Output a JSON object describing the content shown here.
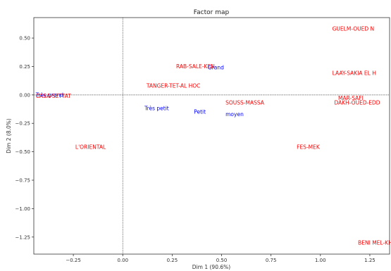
{
  "chart_data": {
    "type": "scatter",
    "title": "Factor map",
    "xlabel": "Dim 1 (90.6%)",
    "ylabel": "Dim 2 (8.0%)",
    "xlim": [
      -0.45,
      1.35
    ],
    "ylim": [
      -1.4,
      0.68
    ],
    "x_ticks": [
      -0.25,
      0.0,
      0.25,
      0.5,
      0.75,
      1.0,
      1.25
    ],
    "x_tick_labels": [
      "−0.25",
      "0.00",
      "0.25",
      "0.50",
      "0.75",
      "1.00",
      "1.25"
    ],
    "y_ticks": [
      0.5,
      0.25,
      0.0,
      -0.25,
      -0.5,
      -0.75,
      -1.0,
      -1.25
    ],
    "y_tick_labels": [
      "0.50",
      "0.25",
      "0.00",
      "−0.25",
      "−0.50",
      "−0.75",
      "−1.00",
      "−1.25"
    ],
    "grid": false,
    "reference_lines": {
      "x": 0,
      "y": 0
    },
    "colors": {
      "rows": "#ff0000",
      "columns": "#0000ff"
    },
    "points": [
      {
        "label": "GUELM-OUED N",
        "x": 1.06,
        "y": 0.58,
        "group": "rows"
      },
      {
        "label": "RAB-SALE-KEN",
        "x": 0.27,
        "y": 0.25,
        "group": "rows"
      },
      {
        "label": "Grand",
        "x": 0.43,
        "y": 0.24,
        "group": "columns"
      },
      {
        "label": "LAAY-SAKIA EL H",
        "x": 1.06,
        "y": 0.19,
        "group": "rows"
      },
      {
        "label": "TANGER-TET-AL HOC",
        "x": 0.12,
        "y": 0.08,
        "group": "rows"
      },
      {
        "label": "Très grand",
        "x": -0.44,
        "y": 0.0,
        "group": "columns"
      },
      {
        "label": "CASA-SETTAT",
        "x": -0.44,
        "y": -0.01,
        "group": "rows"
      },
      {
        "label": "MAR-SAFI",
        "x": 1.09,
        "y": -0.03,
        "group": "rows"
      },
      {
        "label": "SOUSS-MASSA",
        "x": 0.52,
        "y": -0.07,
        "group": "rows"
      },
      {
        "label": "DAKH-OUED-EDD",
        "x": 1.07,
        "y": -0.07,
        "group": "rows"
      },
      {
        "label": "Très petit",
        "x": 0.11,
        "y": -0.12,
        "group": "columns"
      },
      {
        "label": "Petit",
        "x": 0.36,
        "y": -0.15,
        "group": "columns"
      },
      {
        "label": "moyen",
        "x": 0.52,
        "y": -0.17,
        "group": "columns"
      },
      {
        "label": "L'ORIENTAL",
        "x": -0.24,
        "y": -0.46,
        "group": "rows"
      },
      {
        "label": "FES-MEK",
        "x": 0.88,
        "y": -0.46,
        "group": "rows"
      },
      {
        "label": "BENI MEL-KHEN",
        "x": 1.19,
        "y": -1.3,
        "group": "rows"
      }
    ]
  }
}
